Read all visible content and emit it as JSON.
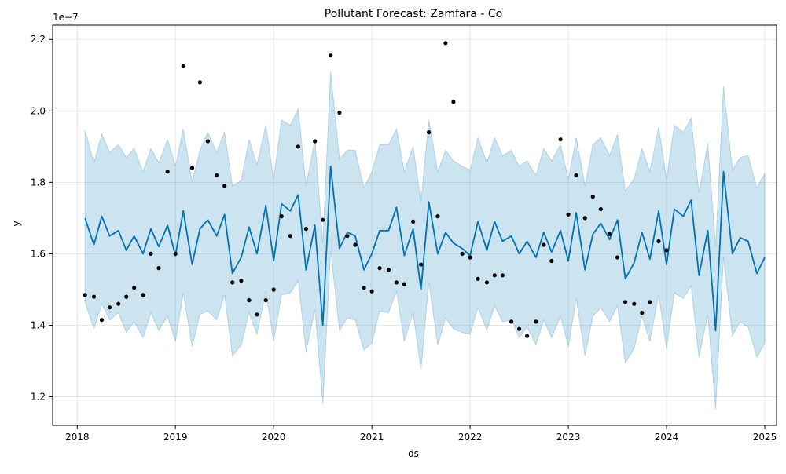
{
  "chart_data": {
    "type": "line",
    "title": "Pollutant Forecast: Zamfara - Co",
    "xlabel": "ds",
    "ylabel": "y",
    "y_scale_note": "1e−7",
    "xlim": [
      2017.75,
      2025.12
    ],
    "ylim": [
      1.12,
      2.24
    ],
    "x_ticks": [
      "2018",
      "2019",
      "2020",
      "2021",
      "2022",
      "2023",
      "2024",
      "2025"
    ],
    "y_ticks": [
      "1.2",
      "1.4",
      "1.6",
      "1.8",
      "2.0",
      "2.2"
    ],
    "grid": true,
    "colors": {
      "forecast": "#0072b2",
      "band": "#0072b2",
      "observed": "#000000"
    },
    "series": [
      {
        "kind": "forecast",
        "x": [
          2018.08,
          2018.17,
          2018.25,
          2018.33,
          2018.42,
          2018.5,
          2018.58,
          2018.67,
          2018.75,
          2018.83,
          2018.92,
          2019.0,
          2019.08,
          2019.17,
          2019.25,
          2019.33,
          2019.42,
          2019.5,
          2019.58,
          2019.67,
          2019.75,
          2019.83,
          2019.92,
          2020.0,
          2020.08,
          2020.17,
          2020.25,
          2020.33,
          2020.42,
          2020.5,
          2020.58,
          2020.67,
          2020.75,
          2020.83,
          2020.92,
          2021.0,
          2021.08,
          2021.17,
          2021.25,
          2021.33,
          2021.42,
          2021.5,
          2021.58,
          2021.67,
          2021.75,
          2021.83,
          2021.92,
          2022.0,
          2022.08,
          2022.17,
          2022.25,
          2022.33,
          2022.42,
          2022.5,
          2022.58,
          2022.67,
          2022.75,
          2022.83,
          2022.92,
          2023.0,
          2023.08,
          2023.17,
          2023.25,
          2023.33,
          2023.42,
          2023.5,
          2023.58,
          2023.67,
          2023.75,
          2023.83,
          2023.92,
          2024.0,
          2024.08,
          2024.17,
          2024.25,
          2024.33,
          2024.42,
          2024.5,
          2024.58,
          2024.67,
          2024.75,
          2024.83,
          2024.92,
          2025.0
        ],
        "y": [
          1.7,
          1.625,
          1.705,
          1.65,
          1.665,
          1.61,
          1.65,
          1.6,
          1.67,
          1.62,
          1.68,
          1.595,
          1.72,
          1.57,
          1.67,
          1.695,
          1.65,
          1.71,
          1.545,
          1.59,
          1.675,
          1.6,
          1.735,
          1.58,
          1.74,
          1.72,
          1.765,
          1.555,
          1.68,
          1.4,
          1.845,
          1.615,
          1.66,
          1.65,
          1.555,
          1.6,
          1.665,
          1.665,
          1.73,
          1.595,
          1.67,
          1.5,
          1.745,
          1.6,
          1.66,
          1.63,
          1.615,
          1.595,
          1.69,
          1.61,
          1.69,
          1.635,
          1.65,
          1.6,
          1.635,
          1.59,
          1.66,
          1.605,
          1.665,
          1.58,
          1.715,
          1.555,
          1.655,
          1.685,
          1.64,
          1.695,
          1.53,
          1.575,
          1.66,
          1.585,
          1.72,
          1.57,
          1.725,
          1.705,
          1.75,
          1.54,
          1.665,
          1.385,
          1.83,
          1.6,
          1.645,
          1.635,
          1.545,
          1.59
        ]
      },
      {
        "kind": "interval_upper",
        "values": [
          1.945,
          1.855,
          1.935,
          1.885,
          1.905,
          1.87,
          1.895,
          1.83,
          1.895,
          1.855,
          1.92,
          1.845,
          1.95,
          1.8,
          1.89,
          1.94,
          1.885,
          1.94,
          1.79,
          1.805,
          1.92,
          1.85,
          1.96,
          1.81,
          1.975,
          1.96,
          2.005,
          1.79,
          1.92,
          1.63,
          2.11,
          1.865,
          1.89,
          1.89,
          1.785,
          1.83,
          1.905,
          1.905,
          1.95,
          1.83,
          1.9,
          1.745,
          1.975,
          1.83,
          1.89,
          1.86,
          1.845,
          1.835,
          1.925,
          1.855,
          1.925,
          1.875,
          1.89,
          1.845,
          1.86,
          1.82,
          1.895,
          1.86,
          1.905,
          1.81,
          1.925,
          1.79,
          1.905,
          1.925,
          1.875,
          1.935,
          1.775,
          1.81,
          1.895,
          1.83,
          1.955,
          1.81,
          1.96,
          1.94,
          1.98,
          1.77,
          1.91,
          1.62,
          2.07,
          1.835,
          1.87,
          1.875,
          1.785,
          1.825
        ]
      },
      {
        "kind": "interval_lower",
        "values": [
          1.465,
          1.39,
          1.46,
          1.415,
          1.435,
          1.38,
          1.41,
          1.365,
          1.435,
          1.385,
          1.425,
          1.355,
          1.49,
          1.34,
          1.43,
          1.44,
          1.415,
          1.485,
          1.315,
          1.345,
          1.435,
          1.375,
          1.495,
          1.355,
          1.485,
          1.49,
          1.525,
          1.325,
          1.445,
          1.18,
          1.61,
          1.385,
          1.42,
          1.415,
          1.33,
          1.35,
          1.44,
          1.435,
          1.495,
          1.355,
          1.435,
          1.275,
          1.52,
          1.345,
          1.42,
          1.39,
          1.38,
          1.375,
          1.45,
          1.385,
          1.455,
          1.41,
          1.415,
          1.365,
          1.395,
          1.345,
          1.415,
          1.365,
          1.425,
          1.34,
          1.475,
          1.315,
          1.425,
          1.45,
          1.41,
          1.455,
          1.295,
          1.335,
          1.425,
          1.355,
          1.485,
          1.335,
          1.49,
          1.475,
          1.51,
          1.31,
          1.43,
          1.165,
          1.59,
          1.37,
          1.41,
          1.395,
          1.31,
          1.35
        ]
      },
      {
        "kind": "observed",
        "x": [
          2018.08,
          2018.17,
          2018.25,
          2018.33,
          2018.42,
          2018.5,
          2018.58,
          2018.67,
          2018.75,
          2018.83,
          2018.92,
          2019.0,
          2019.08,
          2019.17,
          2019.25,
          2019.33,
          2019.42,
          2019.5,
          2019.58,
          2019.67,
          2019.75,
          2019.83,
          2019.92,
          2020.0,
          2020.08,
          2020.17,
          2020.25,
          2020.33,
          2020.42,
          2020.5,
          2020.58,
          2020.67,
          2020.75,
          2020.83,
          2020.92,
          2021.0,
          2021.08,
          2021.17,
          2021.25,
          2021.33,
          2021.42,
          2021.5,
          2021.58,
          2021.67,
          2021.75,
          2021.83,
          2021.92,
          2022.0,
          2022.08,
          2022.17,
          2022.25,
          2022.33,
          2022.42,
          2022.5,
          2022.58,
          2022.67,
          2022.75,
          2022.83,
          2022.92,
          2023.0,
          2023.08,
          2023.17,
          2023.25,
          2023.33,
          2023.42,
          2023.5,
          2023.58,
          2023.67,
          2023.75,
          2023.83,
          2023.92,
          2024.0
        ],
        "y": [
          1.485,
          1.48,
          1.415,
          1.45,
          1.46,
          1.48,
          1.505,
          1.485,
          1.6,
          1.56,
          1.83,
          1.6,
          2.125,
          1.84,
          2.08,
          1.915,
          1.82,
          1.79,
          1.52,
          1.525,
          1.47,
          1.43,
          1.47,
          1.5,
          1.705,
          1.65,
          1.9,
          1.67,
          1.915,
          1.695,
          2.155,
          1.995,
          1.65,
          1.625,
          1.505,
          1.495,
          1.56,
          1.555,
          1.52,
          1.515,
          1.69,
          1.57,
          1.94,
          1.705,
          2.19,
          2.025,
          1.6,
          1.59,
          1.53,
          1.52,
          1.54,
          1.54,
          1.41,
          1.39,
          1.37,
          1.41,
          1.625,
          1.58,
          1.92,
          1.71,
          1.82,
          1.7,
          1.76,
          1.725,
          1.655,
          1.59,
          1.465,
          1.46,
          1.435,
          1.465,
          1.635,
          1.61
        ]
      }
    ]
  }
}
